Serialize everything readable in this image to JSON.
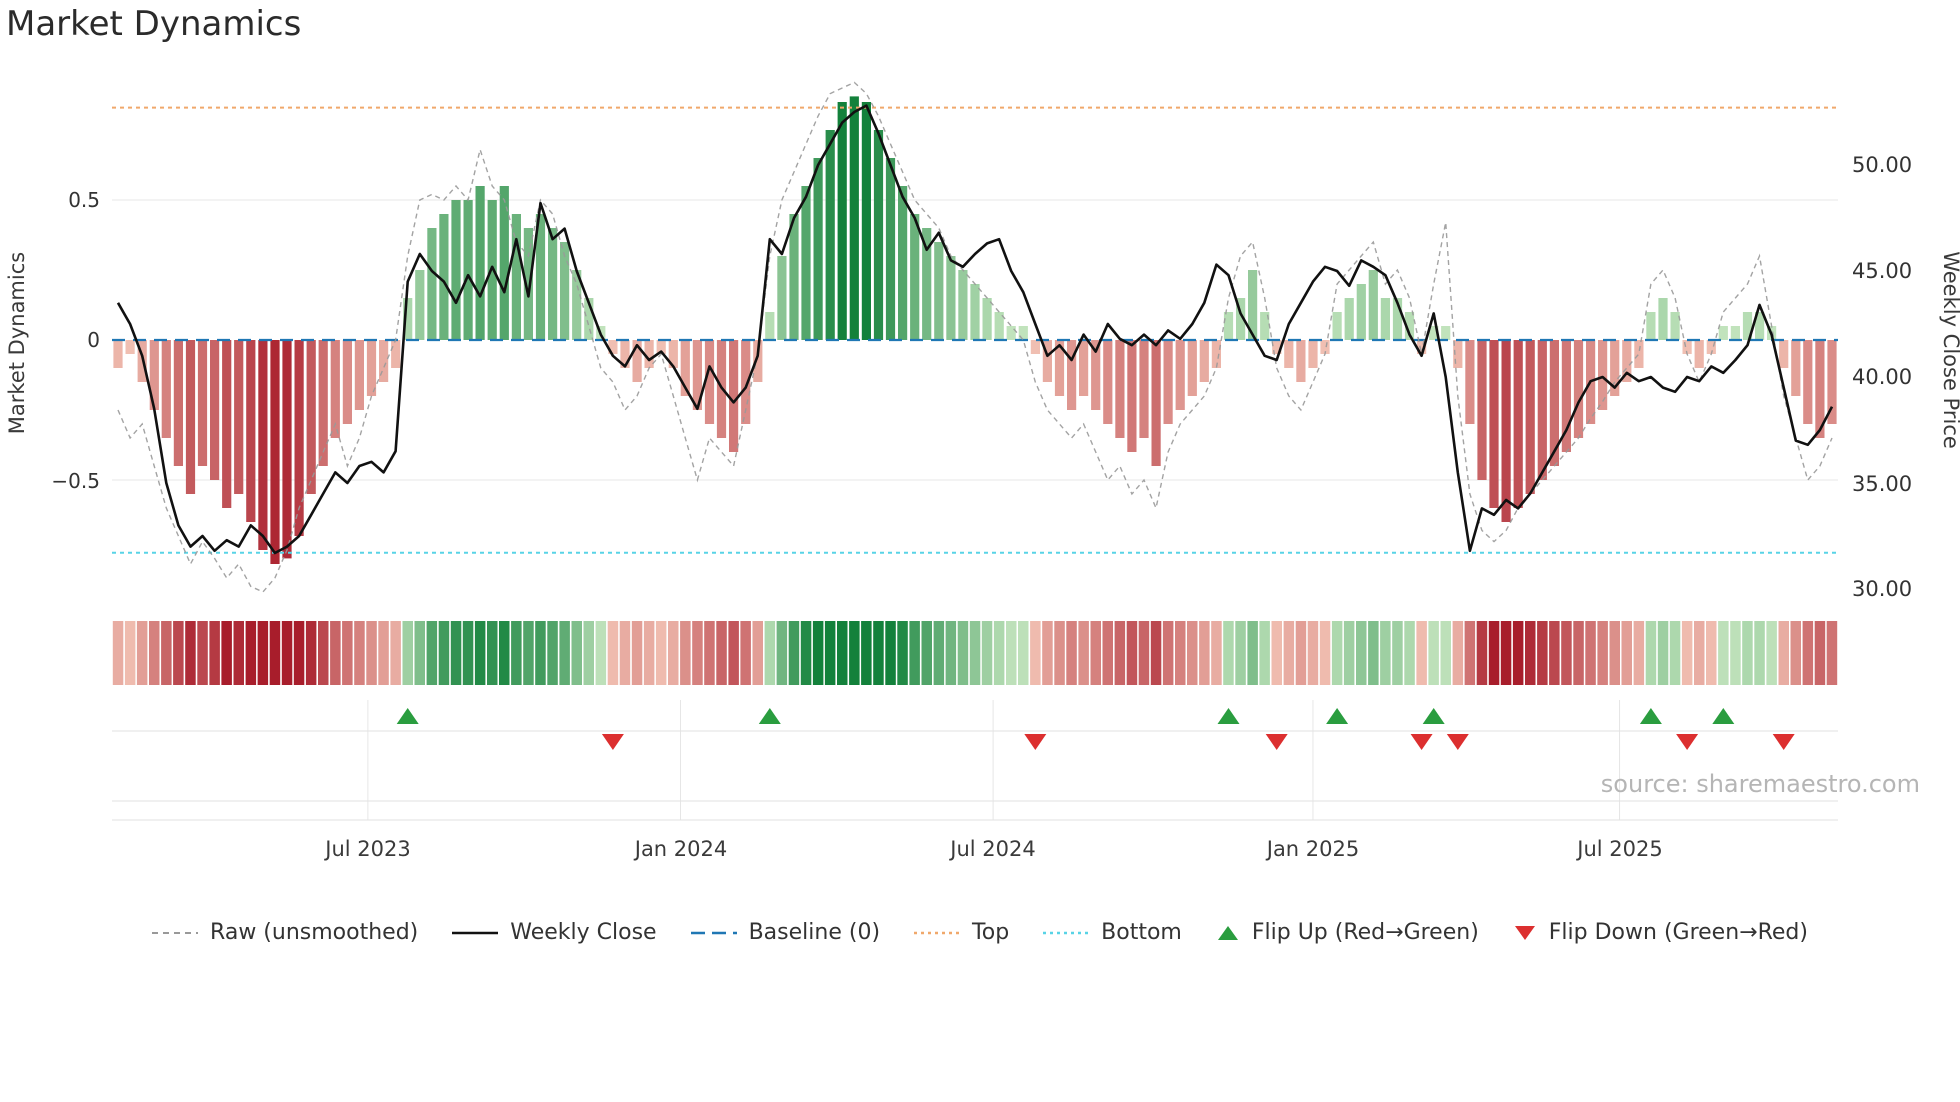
{
  "title": "Market Dynamics",
  "source": "source: sharemaestro.com",
  "axes": {
    "left_label": "Market Dynamics",
    "right_label": "Weekly Close Price",
    "left_ticks": [
      "0.5",
      "0",
      "−0.5"
    ],
    "right_ticks": [
      "50.00",
      "45.00",
      "40.00",
      "35.00",
      "30.00"
    ],
    "x_ticks": [
      "Jul 2023",
      "Jan 2024",
      "Jul 2024",
      "Jan 2025",
      "Jul 2025"
    ]
  },
  "legend": {
    "items": [
      {
        "label": "Raw (unsmoothed)",
        "swatch": "dashed-gray-line"
      },
      {
        "label": "Weekly Close",
        "swatch": "solid-black-line"
      },
      {
        "label": "Baseline (0)",
        "swatch": "dashed-blue-line"
      },
      {
        "label": "Top",
        "swatch": "dotted-orange-line"
      },
      {
        "label": "Bottom",
        "swatch": "dotted-cyan-line"
      },
      {
        "label": "Flip Up (Red→Green)",
        "swatch": "green-up-triangle"
      },
      {
        "label": "Flip Down (Green→Red)",
        "swatch": "red-down-triangle"
      }
    ]
  },
  "colors": {
    "baseline": "#1f77b4",
    "top": "#f0a86b",
    "bottom": "#58d3e6",
    "raw": "#999999",
    "close": "#111111",
    "flip_up": "#2a9d3f",
    "flip_down": "#dc2f2f",
    "bar_green_light": "#cce9c4",
    "bar_green_dark": "#13813b",
    "bar_red_light": "#f5c9ba",
    "bar_red_dark": "#a81d2b",
    "grid": "#e6e6e6"
  },
  "chart_data": {
    "type": "bar",
    "description": "Weekly market-dynamics oscillator bars with raw unsmoothed line, weekly close price overlay (right axis), heatmap strip and flip markers",
    "weeks": 143,
    "x_tick_labels": [
      "Jul 2023",
      "Jan 2024",
      "Jul 2024",
      "Jan 2025",
      "Jul 2025"
    ],
    "x_tick_weeks": [
      21.2,
      47.1,
      73.0,
      99.5,
      124.9
    ],
    "left_axis": {
      "label": "Market Dynamics",
      "ticks": [
        0.5,
        0,
        -0.5
      ],
      "range": [
        -0.95,
        0.93
      ]
    },
    "right_axis": {
      "label": "Weekly Close Price",
      "ticks": [
        50,
        45,
        40,
        35,
        30
      ],
      "range": [
        29.2,
        54.0
      ]
    },
    "baseline": 0,
    "top_threshold": 0.83,
    "bottom_threshold": -0.76,
    "grid": "light horizontal at ±0.5, vertical date gridlines in marker panel",
    "legend_position": "bottom-center",
    "series": [
      {
        "name": "Market Dynamics (smoothed bars)",
        "type": "bar",
        "axis": "left",
        "values": [
          -0.1,
          -0.05,
          -0.15,
          -0.25,
          -0.35,
          -0.45,
          -0.55,
          -0.45,
          -0.5,
          -0.6,
          -0.55,
          -0.65,
          -0.75,
          -0.8,
          -0.78,
          -0.7,
          -0.55,
          -0.45,
          -0.35,
          -0.3,
          -0.25,
          -0.2,
          -0.15,
          -0.1,
          0.15,
          0.25,
          0.4,
          0.45,
          0.5,
          0.5,
          0.55,
          0.5,
          0.55,
          0.45,
          0.4,
          0.45,
          0.4,
          0.35,
          0.25,
          0.15,
          0.05,
          -0.05,
          -0.1,
          -0.15,
          -0.1,
          -0.05,
          -0.1,
          -0.2,
          -0.25,
          -0.3,
          -0.35,
          -0.4,
          -0.3,
          -0.15,
          0.1,
          0.3,
          0.45,
          0.55,
          0.65,
          0.75,
          0.85,
          0.87,
          0.85,
          0.75,
          0.65,
          0.55,
          0.45,
          0.4,
          0.35,
          0.3,
          0.25,
          0.2,
          0.15,
          0.1,
          0.05,
          0.05,
          -0.05,
          -0.15,
          -0.2,
          -0.25,
          -0.2,
          -0.25,
          -0.3,
          -0.35,
          -0.4,
          -0.35,
          -0.45,
          -0.3,
          -0.25,
          -0.2,
          -0.15,
          -0.1,
          0.1,
          0.15,
          0.25,
          0.1,
          -0.05,
          -0.1,
          -0.15,
          -0.1,
          -0.05,
          0.1,
          0.15,
          0.2,
          0.25,
          0.15,
          0.15,
          0.1,
          -0.05,
          0.05,
          0.05,
          -0.1,
          -0.3,
          -0.5,
          -0.6,
          -0.65,
          -0.6,
          -0.55,
          -0.5,
          -0.45,
          -0.4,
          -0.35,
          -0.3,
          -0.25,
          -0.2,
          -0.15,
          -0.1,
          0.1,
          0.15,
          0.1,
          -0.05,
          -0.1,
          -0.05,
          0.05,
          0.05,
          0.1,
          0.1,
          0.05,
          -0.1,
          -0.2,
          -0.3,
          -0.35,
          -0.3
        ]
      },
      {
        "name": "Raw (unsmoothed)",
        "type": "line",
        "axis": "left",
        "values": [
          -0.25,
          -0.35,
          -0.3,
          -0.45,
          -0.6,
          -0.7,
          -0.8,
          -0.72,
          -0.78,
          -0.85,
          -0.8,
          -0.88,
          -0.9,
          -0.85,
          -0.75,
          -0.6,
          -0.5,
          -0.4,
          -0.3,
          -0.45,
          -0.35,
          -0.2,
          -0.1,
          0.0,
          0.3,
          0.5,
          0.52,
          0.5,
          0.55,
          0.5,
          0.68,
          0.55,
          0.5,
          0.35,
          0.3,
          0.5,
          0.45,
          0.3,
          0.2,
          0.05,
          -0.1,
          -0.15,
          -0.25,
          -0.2,
          -0.1,
          -0.05,
          -0.2,
          -0.35,
          -0.5,
          -0.35,
          -0.4,
          -0.45,
          -0.25,
          -0.05,
          0.3,
          0.5,
          0.6,
          0.7,
          0.8,
          0.88,
          0.9,
          0.92,
          0.88,
          0.8,
          0.7,
          0.6,
          0.5,
          0.45,
          0.4,
          0.3,
          0.25,
          0.2,
          0.15,
          0.1,
          0.05,
          0.0,
          -0.15,
          -0.25,
          -0.3,
          -0.35,
          -0.3,
          -0.4,
          -0.5,
          -0.45,
          -0.55,
          -0.5,
          -0.6,
          -0.4,
          -0.3,
          -0.25,
          -0.2,
          -0.1,
          0.15,
          0.3,
          0.35,
          0.15,
          -0.1,
          -0.2,
          -0.25,
          -0.15,
          -0.05,
          0.2,
          0.25,
          0.3,
          0.35,
          0.2,
          0.25,
          0.15,
          -0.05,
          0.2,
          0.42,
          -0.2,
          -0.55,
          -0.68,
          -0.72,
          -0.68,
          -0.6,
          -0.55,
          -0.5,
          -0.45,
          -0.4,
          -0.35,
          -0.28,
          -0.22,
          -0.15,
          -0.1,
          -0.05,
          0.2,
          0.25,
          0.15,
          -0.05,
          -0.15,
          -0.05,
          0.1,
          0.15,
          0.2,
          0.3,
          0.05,
          -0.2,
          -0.35,
          -0.5,
          -0.45,
          -0.35
        ]
      },
      {
        "name": "Weekly Close",
        "type": "line",
        "axis": "right",
        "values": [
          43.5,
          42.5,
          41.0,
          38.5,
          35.0,
          33.0,
          32.0,
          32.5,
          31.8,
          32.3,
          32.0,
          33.0,
          32.5,
          31.7,
          32.0,
          32.5,
          33.5,
          34.5,
          35.5,
          35.0,
          35.8,
          36.0,
          35.5,
          36.5,
          44.5,
          45.8,
          45.0,
          44.5,
          43.5,
          44.8,
          43.8,
          45.2,
          44.0,
          46.5,
          43.8,
          48.2,
          46.5,
          47.0,
          45.0,
          43.5,
          42.0,
          41.0,
          40.5,
          41.5,
          40.8,
          41.2,
          40.5,
          39.5,
          38.5,
          40.5,
          39.5,
          38.8,
          39.5,
          41.0,
          46.5,
          45.8,
          47.5,
          48.5,
          50.0,
          51.0,
          52.0,
          52.5,
          52.8,
          51.5,
          50.0,
          48.5,
          47.5,
          46.0,
          46.8,
          45.5,
          45.2,
          45.8,
          46.3,
          46.5,
          45.0,
          44.0,
          42.5,
          41.0,
          41.5,
          40.8,
          42.0,
          41.2,
          42.5,
          41.8,
          41.5,
          42.0,
          41.5,
          42.2,
          41.8,
          42.5,
          43.5,
          45.3,
          44.8,
          43.0,
          42.0,
          41.0,
          40.8,
          42.5,
          43.5,
          44.5,
          45.2,
          45.0,
          44.3,
          45.5,
          45.2,
          44.8,
          43.5,
          42.0,
          41.0,
          43.0,
          40.0,
          35.5,
          31.8,
          33.8,
          33.5,
          34.2,
          33.8,
          34.5,
          35.5,
          36.5,
          37.5,
          38.8,
          39.8,
          40.0,
          39.5,
          40.2,
          39.8,
          40.0,
          39.5,
          39.3,
          40.0,
          39.8,
          40.5,
          40.2,
          40.8,
          41.5,
          43.4,
          42.0,
          39.5,
          37.0,
          36.8,
          37.5,
          38.6
        ]
      }
    ],
    "heatmap": "same values as smoothed bar series, rendered as full-height color strip",
    "flip_up_weeks": [
      24,
      54,
      92,
      101,
      109,
      127,
      133
    ],
    "flip_down_weeks": [
      41,
      76,
      96,
      108,
      111,
      130,
      138
    ]
  }
}
